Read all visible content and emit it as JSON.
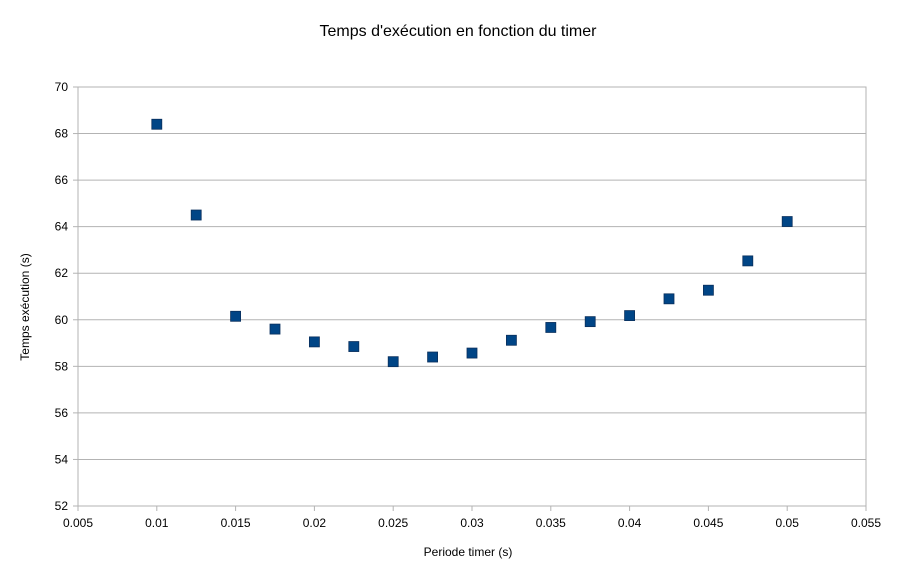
{
  "chart_data": {
    "type": "scatter",
    "title": "Temps d'exécution en fonction du timer",
    "xlabel": "Periode timer (s)",
    "ylabel": "Temps exécution (s)",
    "xlim": [
      0.005,
      0.055
    ],
    "ylim": [
      52,
      70
    ],
    "xticks": [
      "0.005",
      "0.01",
      "0.015",
      "0.02",
      "0.025",
      "0.03",
      "0.035",
      "0.04",
      "0.045",
      "0.05",
      "0.055"
    ],
    "yticks": [
      "52",
      "54",
      "56",
      "58",
      "60",
      "62",
      "64",
      "66",
      "68",
      "70"
    ],
    "grid": true,
    "legend": "none",
    "marker_color": "#004586",
    "series": [
      {
        "marker": "square",
        "x": [
          0.01,
          0.0125,
          0.015,
          0.0175,
          0.02,
          0.0225,
          0.025,
          0.0275,
          0.03,
          0.0325,
          0.035,
          0.0375,
          0.04,
          0.0425,
          0.045,
          0.0475,
          0.05
        ],
        "y": [
          68.4,
          64.5,
          60.15,
          59.6,
          59.05,
          58.85,
          58.2,
          58.4,
          58.57,
          59.12,
          59.67,
          59.92,
          60.18,
          60.9,
          61.27,
          62.53,
          64.22
        ]
      }
    ]
  }
}
